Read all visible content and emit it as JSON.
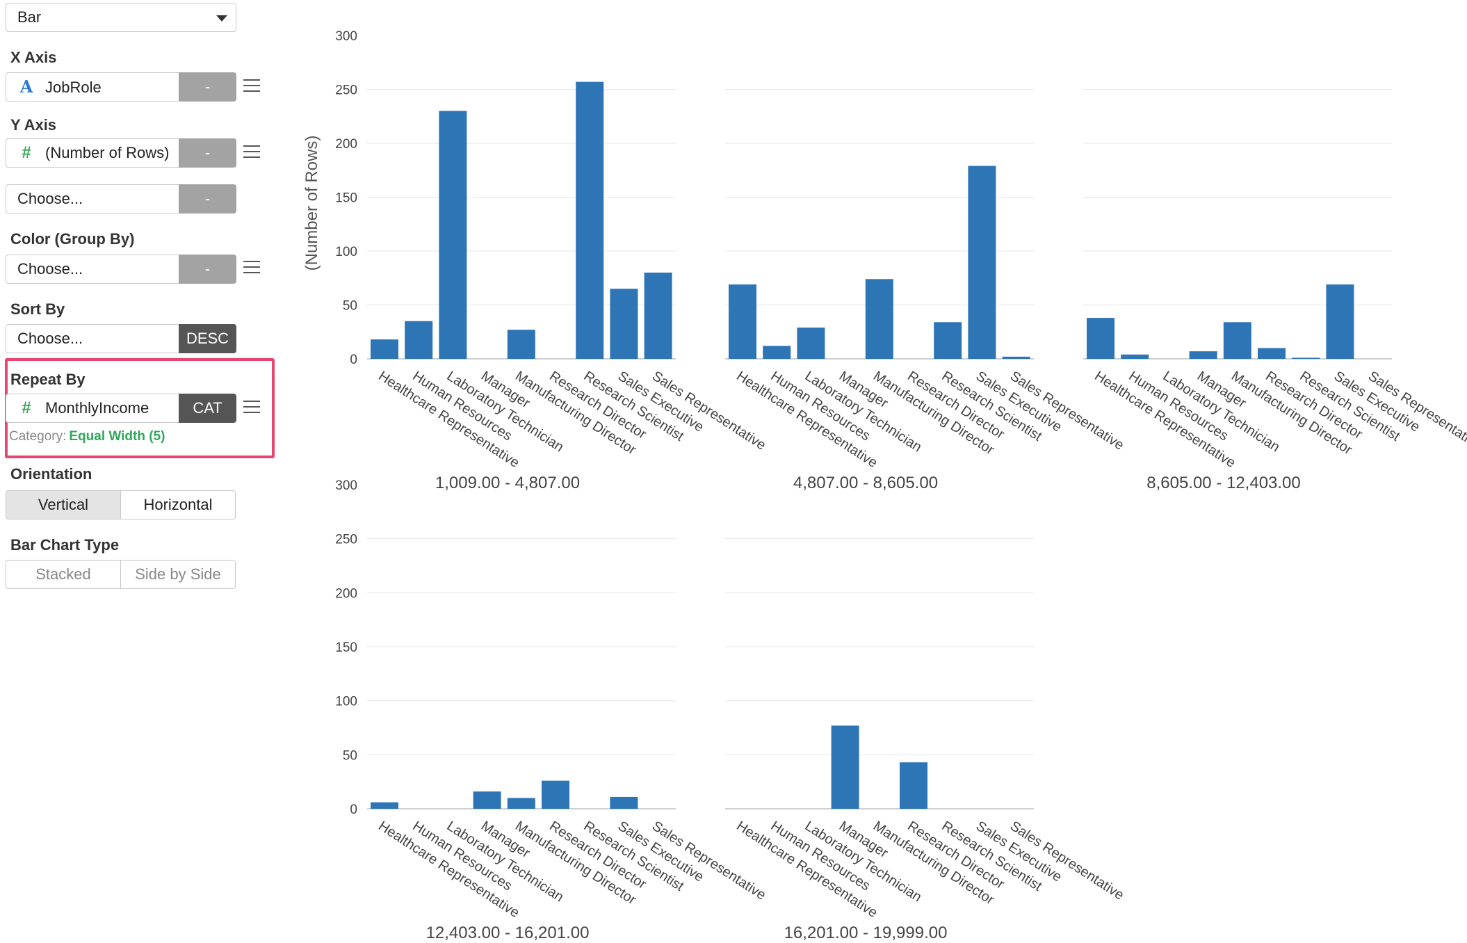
{
  "chart_type_select": {
    "value": "Bar"
  },
  "x_axis": {
    "title": "X Axis",
    "field": "JobRole",
    "button": "-"
  },
  "y_axis": {
    "title": "Y Axis",
    "field": "(Number of Rows)",
    "button": "-",
    "second_field": "Choose...",
    "second_button": "-"
  },
  "color": {
    "title": "Color (Group By)",
    "field": "Choose...",
    "button": "-"
  },
  "sort": {
    "title": "Sort By",
    "field": "Choose...",
    "button": "DESC"
  },
  "repeat": {
    "title": "Repeat By",
    "field": "MonthlyIncome",
    "button": "CAT",
    "category_label": "Category:",
    "category_value": "Equal Width (5)"
  },
  "orientation": {
    "title": "Orientation",
    "options": [
      "Vertical",
      "Horizontal"
    ],
    "selected": "Vertical"
  },
  "bar_chart_type": {
    "title": "Bar Chart Type",
    "options": [
      "Stacked",
      "Side by Side"
    ]
  },
  "colors": {
    "bar": "#2e75b6",
    "highlight": "#e8466f",
    "accent_green": "#2fa85a"
  },
  "icons": {
    "text_type": "text-type-icon",
    "number_type": "number-type-icon",
    "menu": "hamburger-menu-icon",
    "dropdown": "chevron-down-icon"
  },
  "chart_data": {
    "type": "bar",
    "ylabel": "(Number of Rows)",
    "ylim": [
      0,
      300
    ],
    "yticks": [
      0,
      50,
      100,
      150,
      200,
      250,
      300
    ],
    "grid": true,
    "categories": [
      "Healthcare Representative",
      "Human Resources",
      "Laboratory Technician",
      "Manager",
      "Manufacturing Director",
      "Research Director",
      "Research Scientist",
      "Sales Executive",
      "Sales Representative"
    ],
    "panels": [
      {
        "label": "1,009.00 - 4,807.00",
        "values": [
          18,
          35,
          230,
          0,
          27,
          0,
          257,
          65,
          80
        ]
      },
      {
        "label": "4,807.00 - 8,605.00",
        "values": [
          69,
          12,
          29,
          0,
          74,
          0,
          34,
          179,
          2
        ]
      },
      {
        "label": "8,605.00 - 12,403.00",
        "values": [
          38,
          4,
          0,
          7,
          34,
          10,
          1,
          69,
          0
        ]
      },
      {
        "label": "12,403.00 - 16,201.00",
        "values": [
          6,
          0,
          0,
          16,
          10,
          26,
          0,
          11,
          0
        ]
      },
      {
        "label": "16,201.00 - 19,999.00",
        "values": [
          0,
          0,
          0,
          77,
          0,
          43,
          0,
          0,
          0
        ]
      }
    ]
  }
}
